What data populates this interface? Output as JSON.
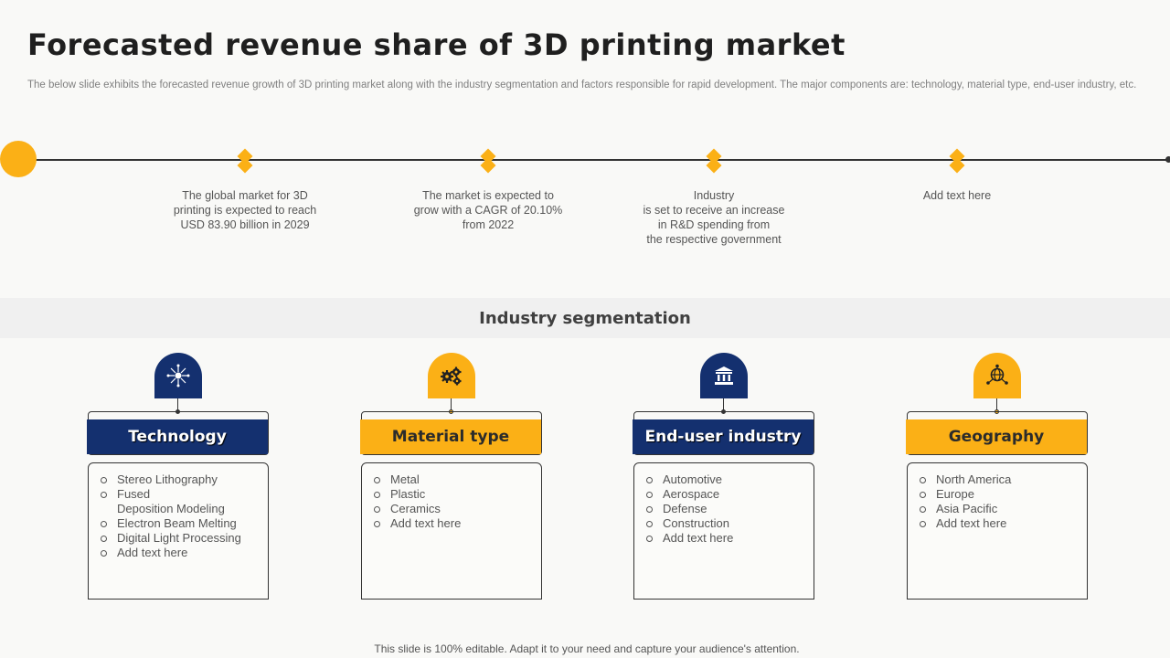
{
  "title": "Forecasted revenue share of 3D printing market",
  "subtitle": "The below slide exhibits the forecasted revenue growth of 3D printing market along with the industry segmentation and factors responsible for rapid development. The major components are: technology, material type, end-user industry, etc.",
  "timeline": {
    "milestones": [
      {
        "text": "The global market for 3D\nprinting is expected to reach\nUSD 83.90 billion in 2029"
      },
      {
        "text": "The market is expected to\ngrow with a CAGR of 20.10%\nfrom 2022"
      },
      {
        "text": "Industry\nis set to receive  an increase\nin R&D spending from\nthe respective government"
      },
      {
        "text": "Add text here"
      }
    ]
  },
  "segmentation": {
    "title": "Industry segmentation",
    "cards": [
      {
        "heading": "Technology",
        "icon": "network-icon",
        "items": [
          "Stereo Lithography",
          "Fused\nDeposition Modeling",
          "Electron Beam Melting",
          "Digital Light Processing",
          "Add text here"
        ]
      },
      {
        "heading": "Material type",
        "icon": "gears-icon",
        "items": [
          "Metal",
          "Plastic",
          "Ceramics",
          "Add text here"
        ]
      },
      {
        "heading": "End-user industry",
        "icon": "building-icon",
        "items": [
          "Automotive",
          "Aerospace",
          "Defense",
          "Construction",
          "Add text here"
        ]
      },
      {
        "heading": "Geography",
        "icon": "globe-network-icon",
        "items": [
          "North America",
          "Europe",
          "Asia Pacific",
          "Add text here"
        ]
      }
    ]
  },
  "colors": {
    "navy": "#14306f",
    "gold": "#fbb016"
  },
  "footer": "This slide is 100% editable. Adapt it to your need and capture your audience's attention."
}
